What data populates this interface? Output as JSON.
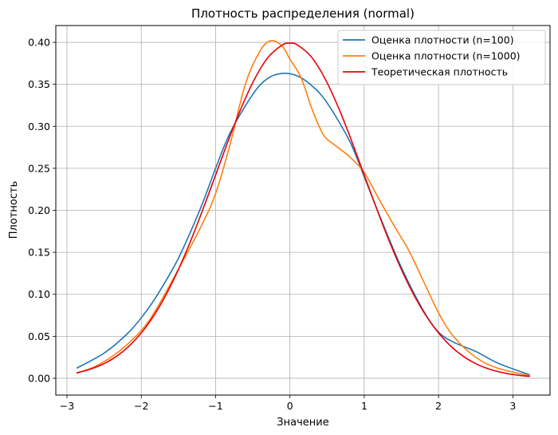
{
  "chart_data": {
    "type": "line",
    "title": "Плотность распределения (normal)",
    "xlabel": "Значение",
    "ylabel": "Плотность",
    "xlim": [
      -3.15,
      3.5
    ],
    "ylim": [
      -0.02,
      0.42
    ],
    "xticks": [
      -3,
      -2,
      -1,
      0,
      1,
      2,
      3
    ],
    "xtick_labels": [
      "−3",
      "−2",
      "−1",
      "0",
      "1",
      "2",
      "3"
    ],
    "yticks": [
      0.0,
      0.05,
      0.1,
      0.15,
      0.2,
      0.25,
      0.3,
      0.35,
      0.4
    ],
    "ytick_labels": [
      "0.00",
      "0.05",
      "0.10",
      "0.15",
      "0.20",
      "0.25",
      "0.30",
      "0.35",
      "0.40"
    ],
    "grid": true,
    "legend_position": "top-right",
    "series": [
      {
        "name": "Оценка плотности (n=100)",
        "color": "#1f77b4",
        "x": [
          -2.87,
          -2.5,
          -2.2,
          -2.0,
          -1.8,
          -1.5,
          -1.2,
          -1.0,
          -0.8,
          -0.5,
          -0.3,
          -0.1,
          0.1,
          0.3,
          0.5,
          0.8,
          1.0,
          1.2,
          1.5,
          1.8,
          2.0,
          2.2,
          2.5,
          2.8,
          3.23
        ],
        "y": [
          0.012,
          0.03,
          0.052,
          0.072,
          0.097,
          0.143,
          0.203,
          0.25,
          0.293,
          0.338,
          0.357,
          0.363,
          0.36,
          0.348,
          0.328,
          0.283,
          0.24,
          0.195,
          0.132,
          0.08,
          0.055,
          0.043,
          0.032,
          0.018,
          0.004
        ]
      },
      {
        "name": "Оценка плотности (n=1000)",
        "color": "#ff7f0e",
        "x": [
          -2.87,
          -2.6,
          -2.3,
          -2.0,
          -1.8,
          -1.5,
          -1.2,
          -1.0,
          -0.8,
          -0.6,
          -0.4,
          -0.25,
          -0.1,
          0.0,
          0.15,
          0.3,
          0.45,
          0.6,
          0.8,
          1.0,
          1.2,
          1.4,
          1.6,
          1.8,
          2.0,
          2.2,
          2.5,
          2.8,
          3.23
        ],
        "y": [
          0.006,
          0.015,
          0.032,
          0.057,
          0.082,
          0.13,
          0.18,
          0.22,
          0.28,
          0.35,
          0.39,
          0.402,
          0.395,
          0.38,
          0.358,
          0.32,
          0.29,
          0.278,
          0.264,
          0.245,
          0.213,
          0.182,
          0.152,
          0.115,
          0.078,
          0.05,
          0.025,
          0.012,
          0.003
        ]
      },
      {
        "name": "Теоретическая плотность",
        "color": "#e8000b",
        "x": [
          -2.87,
          -2.7,
          -2.5,
          -2.3,
          -2.1,
          -1.9,
          -1.7,
          -1.5,
          -1.3,
          -1.1,
          -0.9,
          -0.7,
          -0.5,
          -0.3,
          -0.1,
          0.0,
          0.1,
          0.3,
          0.5,
          0.7,
          0.9,
          1.1,
          1.3,
          1.5,
          1.7,
          1.9,
          2.1,
          2.3,
          2.5,
          2.7,
          2.9,
          3.1,
          3.23
        ],
        "y": [
          0.0065,
          0.0104,
          0.0175,
          0.0283,
          0.044,
          0.0656,
          0.094,
          0.1295,
          0.1714,
          0.2179,
          0.2661,
          0.3123,
          0.3521,
          0.3814,
          0.397,
          0.3989,
          0.397,
          0.3814,
          0.3521,
          0.3123,
          0.2661,
          0.2179,
          0.1714,
          0.1295,
          0.094,
          0.0656,
          0.044,
          0.0283,
          0.0175,
          0.0104,
          0.006,
          0.0033,
          0.0022
        ]
      }
    ]
  }
}
